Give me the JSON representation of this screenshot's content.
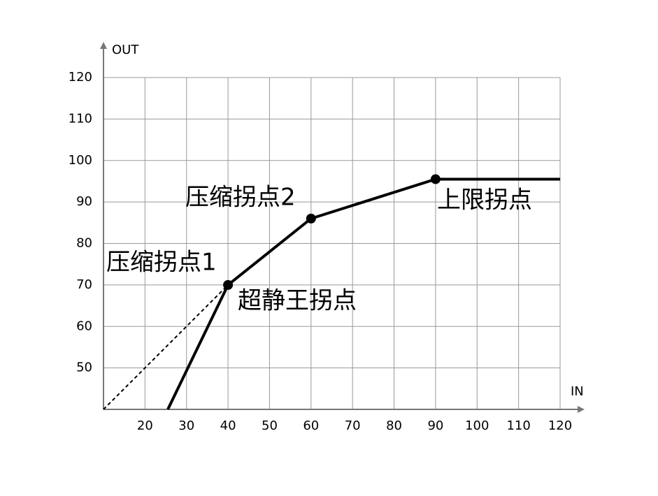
{
  "chart_data": {
    "type": "line",
    "x_label": "IN",
    "y_label": "OUT",
    "xlim": [
      10,
      120
    ],
    "ylim": [
      40,
      120
    ],
    "xticks": [
      20,
      30,
      40,
      50,
      60,
      70,
      80,
      90,
      100,
      110,
      120
    ],
    "yticks": [
      50,
      60,
      70,
      80,
      90,
      100,
      110,
      120
    ],
    "grid": true,
    "series": [
      {
        "color": "#000000",
        "style": "solid",
        "markers": false,
        "x": [
          25.5,
          40,
          60,
          90,
          120
        ],
        "values": [
          40,
          70,
          86,
          95.5,
          95.5
        ]
      },
      {
        "color": "#000000",
        "style": "dashed",
        "markers": false,
        "x": [
          10,
          40
        ],
        "values": [
          40,
          70
        ]
      },
      {
        "color": "#000000",
        "style": "none",
        "markers": true,
        "x": [
          40,
          60,
          90
        ],
        "values": [
          70,
          86,
          95.5
        ]
      }
    ],
    "annotations": [
      "压缩拐点1",
      "超静王拐点",
      "压缩拐点2",
      "上限拐点"
    ]
  }
}
